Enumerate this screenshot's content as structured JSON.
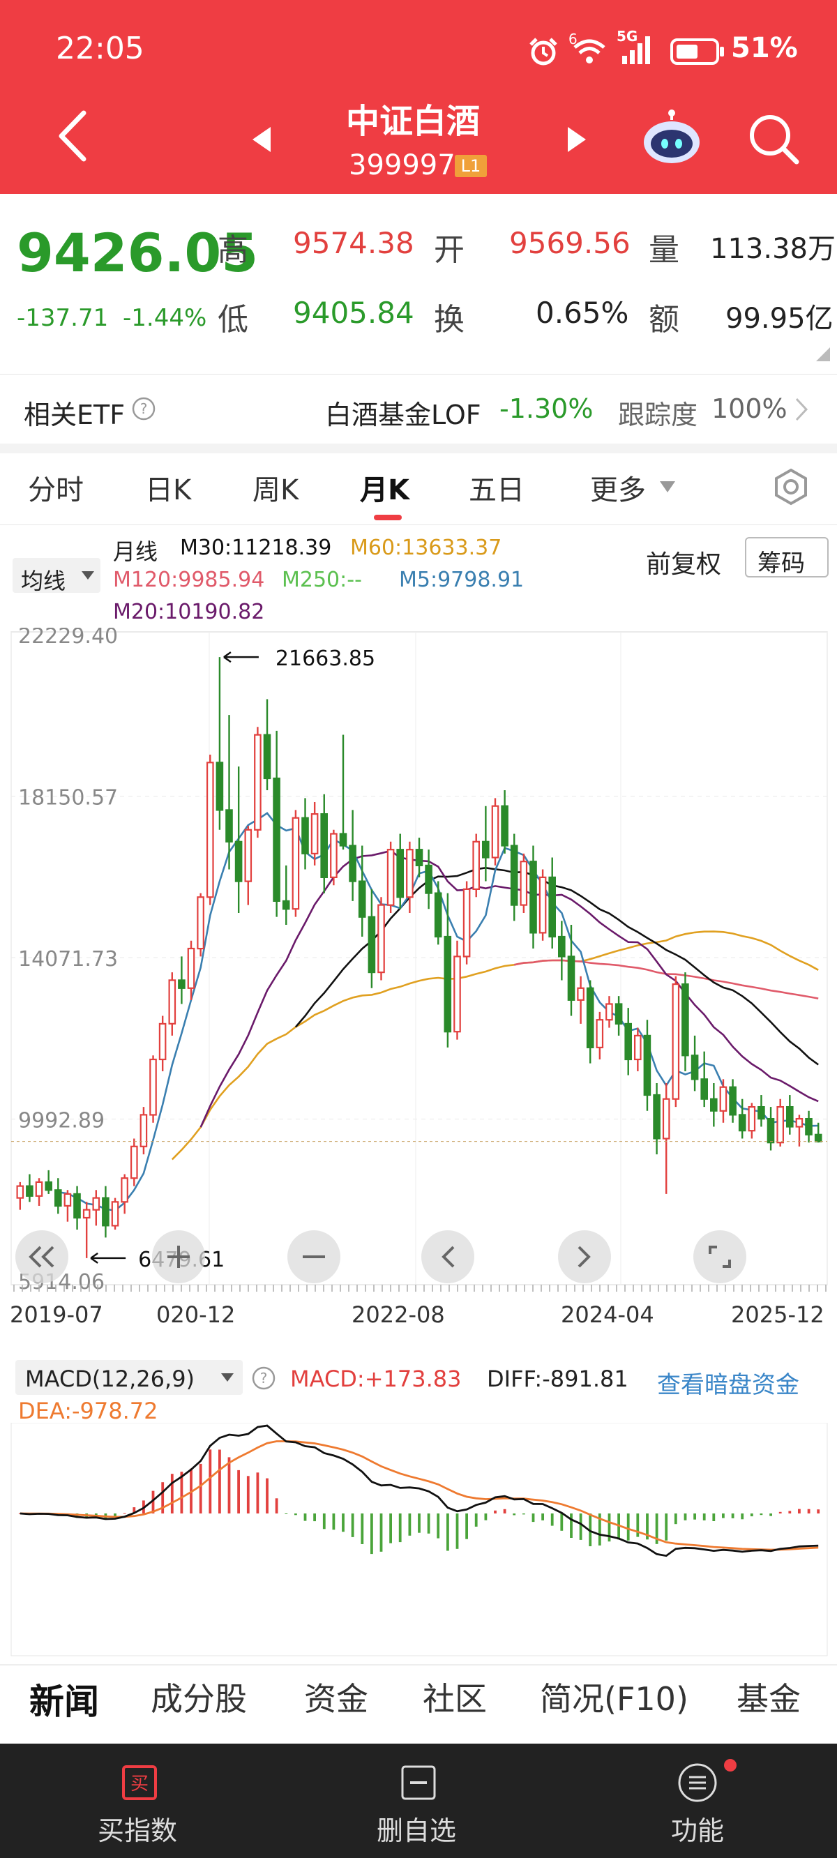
{
  "status_bar": {
    "time": "22:05",
    "network": "5G",
    "battery": "51%",
    "wifi_label": "6"
  },
  "header": {
    "title": "中证白酒",
    "code": "399997",
    "level_badge": "L1"
  },
  "quote": {
    "price": "9426.05",
    "change": "-137.71",
    "change_pct": "-1.44%",
    "high_label": "高",
    "high": "9574.38",
    "low_label": "低",
    "low": "9405.84",
    "open_label": "开",
    "open": "9569.56",
    "turnover_label": "换",
    "turnover": "0.65%",
    "volume_label": "量",
    "volume": "113.38万",
    "amount_label": "额",
    "amount": "99.95亿"
  },
  "etf": {
    "label": "相关ETF",
    "name": "白酒基金LOF",
    "change": "-1.30%",
    "track_label": "跟踪度",
    "track_value": "100%"
  },
  "tabs": [
    {
      "label": "分时"
    },
    {
      "label": "日K"
    },
    {
      "label": "周K"
    },
    {
      "label": "月K"
    },
    {
      "label": "五日"
    },
    {
      "label": "更多"
    }
  ],
  "chart_header": {
    "ma_select": "均线",
    "period": "月线",
    "m30": "M30:11218.39",
    "m60": "M60:13633.37",
    "m120": "M120:9985.94",
    "m250": "M250:--",
    "m5": "M5:9798.91",
    "m20": "M20:10190.82",
    "adjust": "前复权",
    "chip_button": "筹码"
  },
  "macd_header": {
    "name": "MACD(12,26,9)",
    "macd": "MACD:+173.83",
    "diff": "DIFF:-891.81",
    "dea": "DEA:-978.72",
    "link": "查看暗盘资金"
  },
  "colors": {
    "accent": "#ef3d43",
    "up": "#e2403e",
    "down": "#2a8a2a",
    "m5": "#3a7fb0",
    "m20": "#6a1a6a",
    "m30": "#111111",
    "m60": "#e0a020",
    "m120": "#e05a6a",
    "macd_diff": "#111111",
    "macd_dea": "#ee7a30",
    "link": "#3a86c8"
  },
  "bottom_tabs": [
    {
      "label": "新闻"
    },
    {
      "label": "成分股"
    },
    {
      "label": "资金"
    },
    {
      "label": "社区"
    },
    {
      "label": "简况(F10)"
    },
    {
      "label": "基金"
    }
  ],
  "bottom_nav": [
    {
      "label": "买指数",
      "icon": "buy-icon"
    },
    {
      "label": "删自选",
      "icon": "remove-watchlist-icon"
    },
    {
      "label": "功能",
      "icon": "menu-icon"
    }
  ],
  "chart_data": {
    "type": "candlestick",
    "period": "monthly",
    "y_ticks": [
      "22229.40",
      "18150.57",
      "14071.73",
      "9992.89",
      "5914.06"
    ],
    "ylim": [
      5914.06,
      22229.4
    ],
    "x_ticks": [
      "2019-07",
      "020-12",
      "2022-08",
      "2024-04",
      "2025-12"
    ],
    "annotations": {
      "high": "21663.85",
      "low": "6479.61"
    },
    "candles": [
      [
        8000,
        8400,
        7700,
        8300
      ],
      [
        8300,
        8600,
        7900,
        8050
      ],
      [
        8050,
        8500,
        7800,
        8400
      ],
      [
        8400,
        8700,
        8100,
        8200
      ],
      [
        8200,
        8500,
        7600,
        7800
      ],
      [
        7800,
        8200,
        7400,
        8100
      ],
      [
        8100,
        8300,
        7200,
        7500
      ],
      [
        7500,
        7900,
        6479.61,
        7700
      ],
      [
        7700,
        8200,
        7300,
        8000
      ],
      [
        8000,
        8300,
        7000,
        7300
      ],
      [
        7300,
        8000,
        7200,
        7900
      ],
      [
        7900,
        8600,
        7600,
        8500
      ],
      [
        8500,
        9500,
        8300,
        9300
      ],
      [
        9300,
        10300,
        9100,
        10100
      ],
      [
        10100,
        11600,
        9900,
        11500
      ],
      [
        11500,
        12600,
        11200,
        12400
      ],
      [
        12400,
        13700,
        12100,
        13500
      ],
      [
        13500,
        14100,
        12900,
        13300
      ],
      [
        13300,
        14500,
        13000,
        14300
      ],
      [
        14300,
        15700,
        14100,
        15600
      ],
      [
        15600,
        19200,
        15400,
        19000
      ],
      [
        19000,
        21663.85,
        17300,
        17800
      ],
      [
        17800,
        20200,
        16300,
        17000
      ],
      [
        17000,
        18900,
        15200,
        16000
      ],
      [
        16000,
        17400,
        15400,
        17300
      ],
      [
        17300,
        19900,
        17100,
        19700
      ],
      [
        19700,
        20600,
        18300,
        18600
      ],
      [
        18600,
        19800,
        15100,
        15500
      ],
      [
        15500,
        16400,
        14900,
        15300
      ],
      [
        15300,
        17800,
        15100,
        17600
      ],
      [
        17600,
        18100,
        16300,
        16700
      ],
      [
        16700,
        18000,
        16400,
        17700
      ],
      [
        17700,
        18200,
        15700,
        16100
      ],
      [
        16100,
        17300,
        15900,
        17200
      ],
      [
        17200,
        19700,
        16800,
        16900
      ],
      [
        16900,
        17800,
        15500,
        16000
      ],
      [
        16000,
        16900,
        14600,
        15100
      ],
      [
        15100,
        15800,
        13300,
        13700
      ],
      [
        13700,
        15600,
        13500,
        15400
      ],
      [
        15400,
        17000,
        15200,
        16800
      ],
      [
        16800,
        17200,
        15300,
        15600
      ],
      [
        15600,
        17000,
        15200,
        16800
      ],
      [
        16800,
        17100,
        16100,
        16400
      ],
      [
        16400,
        16800,
        15300,
        15700
      ],
      [
        15700,
        16000,
        14400,
        14600
      ],
      [
        14600,
        15700,
        11800,
        12200
      ],
      [
        12200,
        14500,
        12000,
        14100
      ],
      [
        14100,
        16000,
        13900,
        15800
      ],
      [
        15800,
        17200,
        15600,
        17000
      ],
      [
        17000,
        17900,
        16000,
        16600
      ],
      [
        16600,
        18100,
        16400,
        17900
      ],
      [
        17900,
        18300,
        16700,
        16900
      ],
      [
        16900,
        17200,
        15000,
        15400
      ],
      [
        15400,
        16700,
        15200,
        16500
      ],
      [
        16500,
        16900,
        14300,
        14700
      ],
      [
        14700,
        16300,
        14500,
        16100
      ],
      [
        16100,
        16600,
        14300,
        14600
      ],
      [
        14600,
        15000,
        13500,
        14100
      ],
      [
        14100,
        14900,
        12600,
        13000
      ],
      [
        13000,
        13600,
        12400,
        13300
      ],
      [
        13300,
        13500,
        11400,
        11800
      ],
      [
        11800,
        12700,
        11500,
        12500
      ],
      [
        12500,
        13100,
        12300,
        12900
      ],
      [
        12900,
        13100,
        12100,
        12400
      ],
      [
        12400,
        12800,
        11100,
        11500
      ],
      [
        11500,
        12300,
        11200,
        12100
      ],
      [
        12100,
        12500,
        10200,
        10600
      ],
      [
        10600,
        10900,
        9100,
        9500
      ],
      [
        9500,
        10900,
        8100,
        10500
      ],
      [
        10500,
        13600,
        10300,
        13400
      ],
      [
        13400,
        13700,
        11200,
        11600
      ],
      [
        11600,
        12100,
        10700,
        11000
      ],
      [
        11000,
        11700,
        10300,
        10500
      ],
      [
        10500,
        10900,
        9800,
        10200
      ],
      [
        10200,
        11000,
        9900,
        10800
      ],
      [
        10800,
        11000,
        9900,
        10100
      ],
      [
        10100,
        10500,
        9500,
        9700
      ],
      [
        9700,
        10400,
        9500,
        10300
      ],
      [
        10300,
        10600,
        9800,
        10000
      ],
      [
        10000,
        10300,
        9200,
        9400
      ],
      [
        9400,
        10500,
        9300,
        10300
      ],
      [
        10300,
        10600,
        9600,
        9800
      ],
      [
        9800,
        10100,
        9300,
        10000
      ],
      [
        10000,
        10200,
        9400,
        9600
      ],
      [
        9600,
        9900,
        9400,
        9426.05
      ]
    ]
  }
}
